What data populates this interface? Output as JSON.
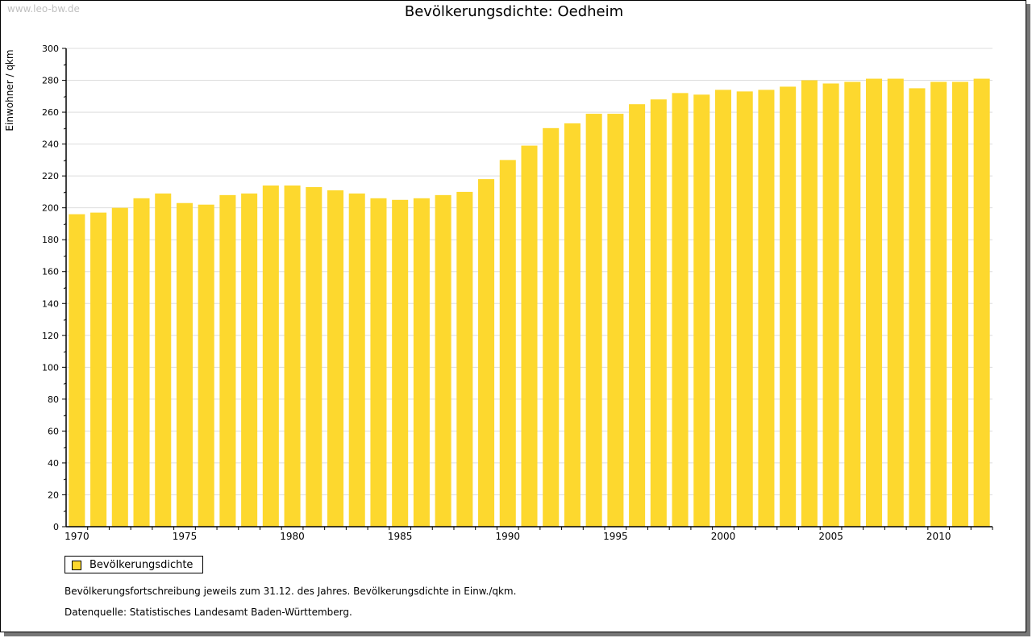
{
  "watermark": "www.leo-bw.de",
  "colors": {
    "bar": "#FDD82E",
    "grid": "#DDDDDD"
  },
  "notes": [
    "Bevölkerungsfortschreibung jeweils zum 31.12. des Jahres. Bevölkerungsdichte in Einw./qkm.",
    "Datenquelle: Statistisches Landesamt Baden-Württemberg."
  ],
  "chart_data": {
    "type": "bar",
    "title": "Bevölkerungsdichte: Oedheim",
    "xlabel": "",
    "ylabel": "Einwohner / qkm",
    "ylim": [
      0,
      300
    ],
    "yticks": [
      0,
      20,
      40,
      60,
      80,
      100,
      120,
      140,
      160,
      180,
      200,
      220,
      240,
      260,
      280,
      300
    ],
    "xtick_labels": [
      "1970",
      "1975",
      "1980",
      "1985",
      "1990",
      "1995",
      "2000",
      "2005",
      "2010"
    ],
    "grid": true,
    "legend": {
      "position": "bottom-left",
      "entries": [
        "Bevölkerungsdichte"
      ]
    },
    "categories": [
      1970,
      1971,
      1972,
      1973,
      1974,
      1975,
      1976,
      1977,
      1978,
      1979,
      1980,
      1981,
      1982,
      1983,
      1984,
      1985,
      1986,
      1987,
      1988,
      1989,
      1990,
      1991,
      1992,
      1993,
      1994,
      1995,
      1996,
      1997,
      1998,
      1999,
      2000,
      2001,
      2002,
      2003,
      2004,
      2005,
      2006,
      2007,
      2008,
      2009,
      2010,
      2011,
      2012
    ],
    "series": [
      {
        "name": "Bevölkerungsdichte",
        "values": [
          196,
          197,
          200,
          206,
          209,
          203,
          202,
          208,
          209,
          214,
          214,
          213,
          211,
          209,
          206,
          205,
          206,
          208,
          210,
          218,
          230,
          239,
          250,
          253,
          259,
          259,
          265,
          268,
          272,
          271,
          274,
          273,
          274,
          276,
          280,
          278,
          279,
          281,
          281,
          275,
          279,
          279,
          281
        ]
      }
    ]
  }
}
